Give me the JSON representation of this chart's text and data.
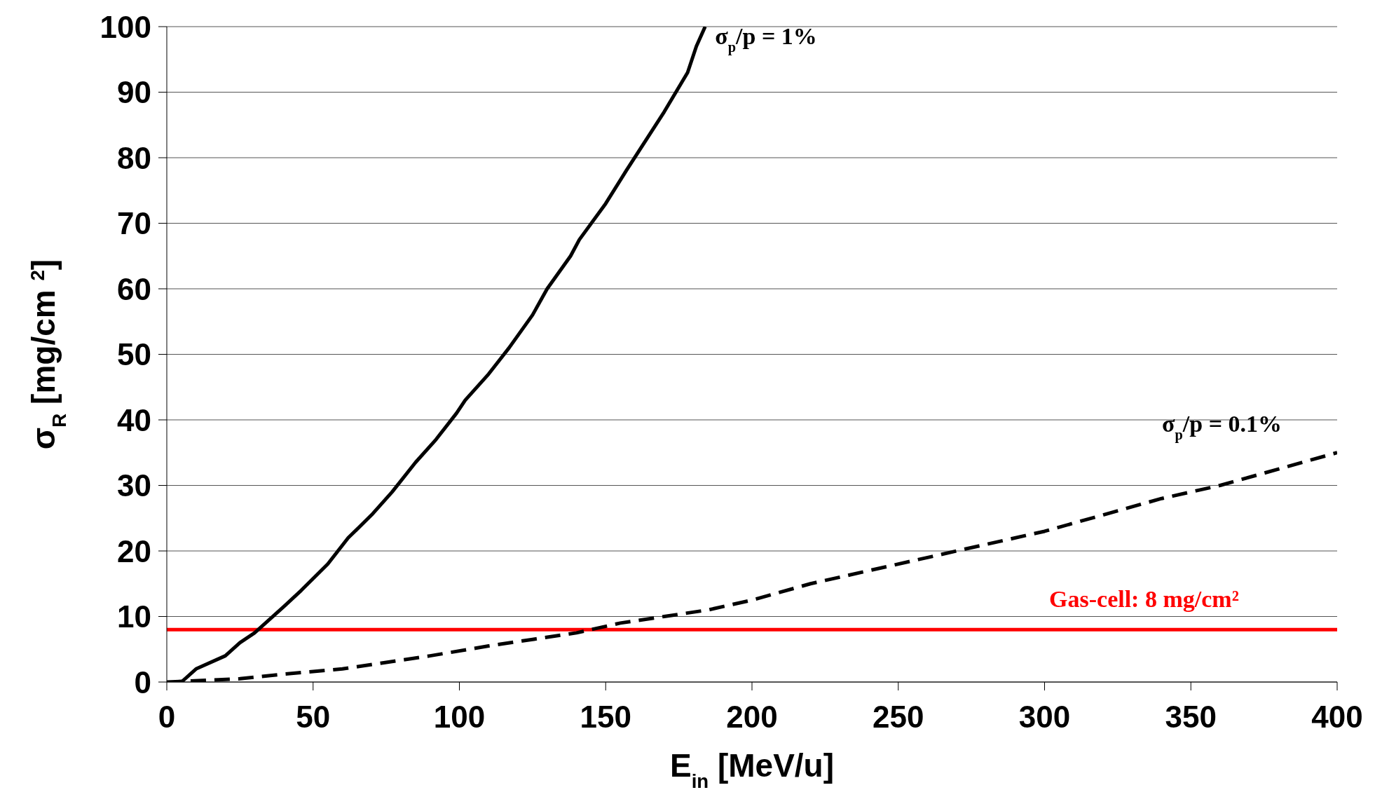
{
  "chart_data": {
    "type": "line",
    "xlabel": "E$_{in}$ [MeV/u]",
    "ylabel": "σ$_{R}$  [mg/cm $^{2}$]",
    "xlim": [
      0,
      400
    ],
    "xticks": [
      0,
      50,
      100,
      150,
      200,
      250,
      300,
      350,
      400
    ],
    "ylim": [
      0,
      100
    ],
    "yticks": [
      0,
      10,
      20,
      30,
      40,
      50,
      60,
      70,
      80,
      90,
      100
    ],
    "grid": "y",
    "marker": "none",
    "series": [
      {
        "name": "σ$_{p}$/p = 1%",
        "color": "#000000",
        "line_style": "solid",
        "x": [
          5,
          10,
          20,
          25,
          30,
          35,
          40,
          46,
          55,
          62,
          70,
          77,
          85,
          92,
          99,
          102,
          110,
          117,
          125,
          130,
          138,
          141,
          150,
          157,
          170,
          178,
          181,
          184
        ],
        "values": [
          0,
          2,
          4,
          6,
          7.5,
          9.5,
          11.5,
          14,
          18,
          22,
          25.5,
          29,
          33.5,
          37,
          41,
          43,
          47,
          51,
          56,
          60,
          65,
          67.5,
          73,
          78,
          87,
          93,
          97,
          100
        ]
      },
      {
        "name": "σ$_{p}$/p = 0.1%",
        "color": "#000000",
        "line_style": "dashed",
        "x": [
          0,
          25,
          40,
          60,
          75,
          90,
          110,
          125,
          140,
          155,
          170,
          185,
          200,
          220,
          240,
          260,
          280,
          300,
          320,
          340,
          360,
          380,
          400
        ],
        "values": [
          0,
          0.5,
          1.2,
          2,
          3,
          4,
          5.5,
          6.5,
          7.5,
          9,
          10,
          11,
          12.5,
          15,
          17,
          19,
          21,
          23,
          25.5,
          28,
          30,
          32.5,
          35
        ]
      }
    ],
    "ref_lines": [
      {
        "axis": "y",
        "value": 8,
        "label": "Gas-cell:  8 mg/cm²",
        "color": "#ff0000",
        "line_style": "solid"
      }
    ]
  }
}
